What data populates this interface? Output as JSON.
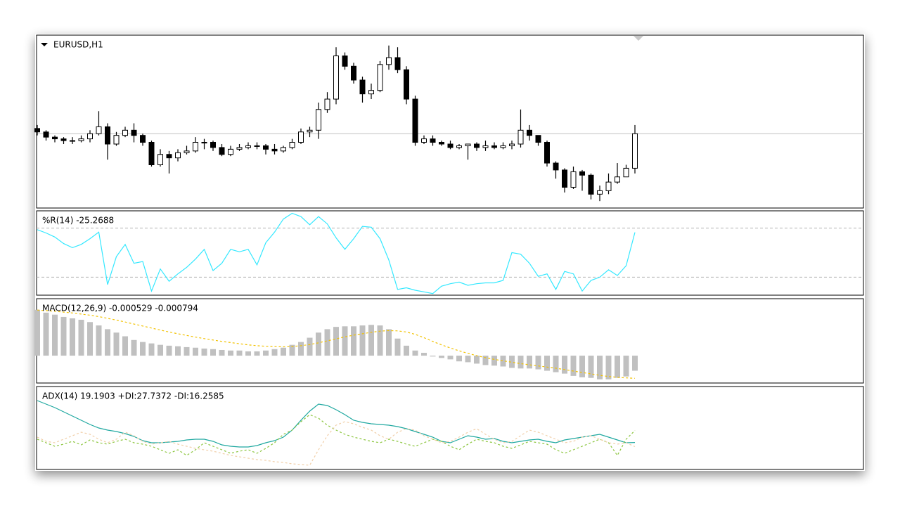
{
  "chart_data": [
    {
      "type": "candlestick",
      "title": "EURUSD,H1",
      "ylim": [
        0,
        100
      ],
      "up_color": "#ffffff",
      "down_color": "#000000",
      "price_line_color": "#c0c0c0",
      "open": [
        46,
        44,
        41,
        40,
        39,
        39,
        40,
        43,
        47,
        37,
        42,
        45,
        42,
        38,
        25,
        31,
        29,
        32,
        33,
        38,
        38,
        35,
        31,
        34,
        35,
        36,
        36,
        34,
        33,
        35,
        38,
        44,
        45,
        57,
        63,
        88,
        82,
        74,
        66,
        68,
        83,
        87,
        80,
        63,
        38,
        40,
        38,
        37,
        35,
        36,
        37,
        35,
        36,
        35,
        36,
        37,
        45,
        42,
        38,
        26,
        22,
        12,
        21,
        19,
        8,
        10,
        15,
        18,
        23
      ],
      "high": [
        48,
        45,
        42,
        41,
        41,
        42,
        45,
        56,
        49,
        44,
        47,
        49,
        43,
        39,
        34,
        33,
        34,
        36,
        41,
        40,
        39,
        37,
        36,
        37,
        38,
        38,
        37,
        37,
        36,
        40,
        46,
        47,
        61,
        67,
        93,
        90,
        84,
        76,
        72,
        85,
        94,
        93,
        82,
        65,
        42,
        42,
        39,
        39,
        37,
        37,
        38,
        39,
        38,
        38,
        39,
        57,
        48,
        42,
        39,
        27,
        23,
        24,
        22,
        20,
        13,
        20,
        26,
        25,
        48
      ],
      "low": [
        42,
        39,
        38,
        37,
        37,
        38,
        38,
        42,
        28,
        36,
        41,
        38,
        36,
        24,
        24,
        20,
        27,
        31,
        32,
        34,
        33,
        30,
        30,
        33,
        34,
        34,
        31,
        31,
        32,
        34,
        37,
        41,
        40,
        55,
        60,
        80,
        72,
        61,
        63,
        67,
        80,
        78,
        60,
        36,
        37,
        36,
        36,
        34,
        34,
        28,
        33,
        33,
        34,
        34,
        34,
        35,
        39,
        36,
        24,
        17,
        9,
        11,
        10,
        5,
        4,
        8,
        14,
        19,
        20
      ],
      "close": [
        44,
        41,
        40,
        39,
        39,
        40,
        43,
        47,
        37,
        42,
        45,
        42,
        38,
        25,
        31,
        29,
        32,
        33,
        38,
        38,
        35,
        31,
        34,
        35,
        36,
        36,
        34,
        33,
        35,
        38,
        44,
        45,
        57,
        63,
        88,
        82,
        74,
        66,
        68,
        83,
        87,
        80,
        63,
        38,
        40,
        38,
        37,
        35,
        36,
        37,
        35,
        36,
        35,
        36,
        37,
        45,
        42,
        38,
        26,
        22,
        12,
        21,
        19,
        8,
        10,
        15,
        18,
        23,
        43
      ]
    },
    {
      "type": "line",
      "title": "%R(14) -25.2688",
      "ylim": [
        -102,
        1
      ],
      "levels": [
        -20,
        -80
      ],
      "level_color": "#b0b0b0",
      "color": "#33e8ff",
      "values": [
        -22,
        -26,
        -31,
        -39,
        -44,
        -40,
        -33,
        -25,
        -89,
        -55,
        -40,
        -63,
        -61,
        -97,
        -70,
        -85,
        -76,
        -68,
        -58,
        -46,
        -72,
        -63,
        -46,
        -49,
        -46,
        -65,
        -38,
        -25,
        -9,
        -2,
        -6,
        -16,
        -6,
        -15,
        -32,
        -46,
        -33,
        -18,
        -19,
        -33,
        -59,
        -95,
        -93,
        -96,
        -98,
        -100,
        -91,
        -88,
        -86,
        -90,
        -88,
        -87,
        -87,
        -84,
        -50,
        -52,
        -63,
        -79,
        -76,
        -95,
        -73,
        -76,
        -97,
        -84,
        -80,
        -71,
        -78,
        -66,
        -25.2688
      ]
    },
    {
      "type": "bar",
      "title": "MACD(12,26,9) -0.000529 -0.000794",
      "ylim": [
        -0.00096,
        0.002
      ],
      "series": [
        {
          "type": "bar",
          "color": "#c0c0c0",
          "values": [
            0.00161,
            0.00151,
            0.00144,
            0.00136,
            0.00131,
            0.00126,
            0.00118,
            0.00106,
            0.00093,
            0.00081,
            0.00068,
            0.00055,
            0.00048,
            0.00043,
            0.00038,
            0.00035,
            0.00033,
            0.0003,
            0.00028,
            0.00025,
            0.00023,
            0.0002,
            0.00018,
            0.00018,
            0.00015,
            0.00015,
            0.00018,
            0.00023,
            0.00028,
            0.00038,
            0.00048,
            0.00063,
            0.00081,
            0.00093,
            0.00101,
            0.00103,
            0.00103,
            0.00106,
            0.00108,
            0.00106,
            0.00093,
            0.0006,
            0.00035,
            0.00018,
            0.0001,
            -3e-05,
            -8e-05,
            -0.00013,
            -0.0002,
            -0.00023,
            -0.00028,
            -0.00033,
            -0.00035,
            -0.00038,
            -0.00043,
            -0.00045,
            -0.00045,
            -0.00048,
            -0.00053,
            -0.00058,
            -0.00063,
            -0.00071,
            -0.00076,
            -0.00078,
            -0.00083,
            -0.00083,
            -0.00078,
            -0.00073,
            -0.000529
          ]
        },
        {
          "type": "line",
          "style": "dashed",
          "color": "#f2c200",
          "values": [
            0.0016,
            0.00158,
            0.00156,
            0.00153,
            0.0015,
            0.00146,
            0.00142,
            0.00137,
            0.00131,
            0.00125,
            0.00118,
            0.00111,
            0.00104,
            0.00097,
            0.0009,
            0.00083,
            0.00077,
            0.00071,
            0.00065,
            0.0006,
            0.00055,
            0.0005,
            0.00046,
            0.00042,
            0.00038,
            0.00035,
            0.00033,
            0.00032,
            0.00031,
            0.00032,
            0.00035,
            0.00039,
            0.00045,
            0.00052,
            0.00059,
            0.00066,
            0.00072,
            0.00077,
            0.00082,
            0.00086,
            0.00088,
            0.00087,
            0.00083,
            0.00075,
            0.00063,
            0.0005,
            0.00038,
            0.00027,
            0.00017,
            8e-05,
            0,
            -7e-05,
            -0.00013,
            -0.00018,
            -0.00023,
            -0.00028,
            -0.00032,
            -0.00036,
            -0.0004,
            -0.00044,
            -0.00049,
            -0.00054,
            -0.00059,
            -0.00064,
            -0.00069,
            -0.00073,
            -0.00076,
            -0.00078,
            -0.000794
          ]
        }
      ]
    },
    {
      "type": "line",
      "title": "ADX(14) 19.1903 +DI:27.7372 -DI:16.2585",
      "ylim": [
        0,
        59
      ],
      "series": [
        {
          "color": "#1fa8a0",
          "style": "solid",
          "values": [
            49,
            46.5,
            44,
            41,
            38,
            35,
            32,
            29.5,
            28,
            27,
            25.5,
            23.5,
            20.5,
            19,
            19,
            19.5,
            20,
            21,
            21.5,
            21.5,
            20,
            17.5,
            16.5,
            16,
            16,
            17,
            19,
            20.5,
            23,
            28,
            35,
            41.5,
            46.5,
            45.5,
            42.5,
            39,
            35,
            33.5,
            32.5,
            32,
            31.5,
            30.5,
            29,
            27,
            25,
            23,
            20,
            19,
            21.5,
            24,
            23,
            21.5,
            22,
            20,
            19,
            20,
            21,
            21.5,
            20,
            19,
            21,
            22,
            23,
            24,
            25,
            23,
            21,
            19,
            19.1903
          ]
        },
        {
          "color": "#8cc63f",
          "style": "dashed",
          "values": [
            21.5,
            19,
            16.5,
            18,
            20,
            17.5,
            21,
            19,
            18,
            20,
            21.5,
            19,
            18,
            16.5,
            14,
            11.5,
            14,
            10,
            14,
            19,
            16.5,
            14,
            11.5,
            13,
            14,
            11.5,
            15,
            19,
            25,
            28,
            34,
            39,
            36.5,
            31.5,
            28,
            25,
            23,
            21.5,
            20,
            19,
            21.5,
            20,
            18,
            16.5,
            19,
            21.5,
            20,
            16.5,
            14,
            18,
            21.5,
            20,
            19,
            16.5,
            15,
            17.5,
            20,
            19,
            18,
            14,
            11.5,
            14,
            16.5,
            19,
            21.5,
            19,
            10,
            21.5,
            27.7372
          ]
        },
        {
          "color": "#f1cfa8",
          "style": "dashed",
          "values": [
            23,
            20,
            19,
            21.5,
            24,
            26.5,
            25,
            21.5,
            19,
            21.5,
            26.5,
            24,
            20,
            18,
            19,
            20,
            18,
            16.5,
            15,
            14,
            13,
            11.5,
            10,
            9,
            8,
            7,
            6.5,
            5.5,
            5,
            4,
            3.5,
            3,
            14,
            24,
            31.5,
            34,
            32.5,
            30,
            28,
            24,
            21.5,
            26.5,
            29,
            28,
            24,
            21.5,
            19,
            20,
            23,
            26.5,
            29,
            25,
            21.5,
            19,
            20,
            24,
            28,
            26.5,
            24,
            21.5,
            19,
            20,
            23,
            24,
            21.5,
            19,
            18,
            19,
            16.2585
          ]
        }
      ]
    }
  ]
}
